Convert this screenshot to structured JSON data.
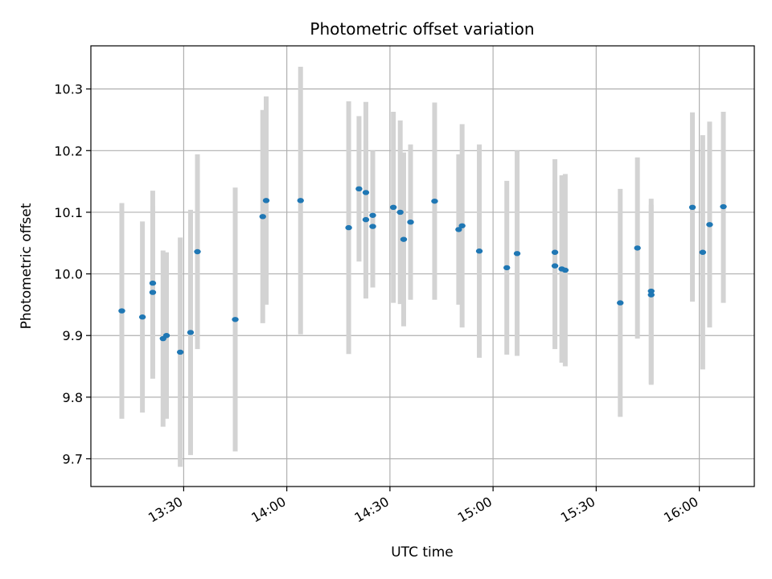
{
  "chart_data": {
    "type": "scatter",
    "title": "Photometric offset variation",
    "xlabel": "UTC time",
    "ylabel": "Photometric offset",
    "xlim": [
      "13:03",
      "16:16"
    ],
    "ylim": [
      9.655,
      10.37
    ],
    "grid": true,
    "colors": {
      "point": "#1f77b4",
      "errorbar": "#d3d3d3"
    },
    "x_ticks": [
      "13:30",
      "14:00",
      "14:30",
      "15:00",
      "15:30",
      "16:00"
    ],
    "y_ticks": [
      "9.7",
      "9.8",
      "9.9",
      "10.0",
      "10.1",
      "10.2",
      "10.3"
    ],
    "series": [
      {
        "points": [
          {
            "t": "13:12",
            "y": 9.94,
            "lo": 9.765,
            "hi": 10.115
          },
          {
            "t": "13:18",
            "y": 9.93,
            "lo": 9.775,
            "hi": 10.085
          },
          {
            "t": "13:21",
            "y": 9.985,
            "lo": 9.835,
            "hi": 10.135
          },
          {
            "t": "13:21",
            "y": 9.97,
            "lo": 9.83,
            "hi": 10.11
          },
          {
            "t": "13:24",
            "y": 9.895,
            "lo": 9.752,
            "hi": 10.038
          },
          {
            "t": "13:25",
            "y": 9.9,
            "lo": 9.765,
            "hi": 10.035
          },
          {
            "t": "13:29",
            "y": 9.873,
            "lo": 9.687,
            "hi": 10.059
          },
          {
            "t": "13:32",
            "y": 9.905,
            "lo": 9.706,
            "hi": 10.104
          },
          {
            "t": "13:34",
            "y": 10.036,
            "lo": 9.878,
            "hi": 10.194
          },
          {
            "t": "13:45",
            "y": 9.926,
            "lo": 9.712,
            "hi": 10.14
          },
          {
            "t": "13:53",
            "y": 10.093,
            "lo": 9.92,
            "hi": 10.266
          },
          {
            "t": "13:54",
            "y": 10.119,
            "lo": 9.95,
            "hi": 10.288
          },
          {
            "t": "14:04",
            "y": 10.119,
            "lo": 9.902,
            "hi": 10.336
          },
          {
            "t": "14:18",
            "y": 10.075,
            "lo": 9.87,
            "hi": 10.28
          },
          {
            "t": "14:21",
            "y": 10.138,
            "lo": 10.02,
            "hi": 10.256
          },
          {
            "t": "14:23",
            "y": 10.088,
            "lo": 9.96,
            "hi": 10.216
          },
          {
            "t": "14:23",
            "y": 10.132,
            "lo": 9.985,
            "hi": 10.279
          },
          {
            "t": "14:25",
            "y": 10.095,
            "lo": 9.99,
            "hi": 10.2
          },
          {
            "t": "14:25",
            "y": 10.077,
            "lo": 9.978,
            "hi": 10.176
          },
          {
            "t": "14:31",
            "y": 10.108,
            "lo": 9.953,
            "hi": 10.263
          },
          {
            "t": "14:33",
            "y": 10.1,
            "lo": 9.951,
            "hi": 10.249
          },
          {
            "t": "14:34",
            "y": 10.056,
            "lo": 9.915,
            "hi": 10.197
          },
          {
            "t": "14:36",
            "y": 10.084,
            "lo": 9.958,
            "hi": 10.21
          },
          {
            "t": "14:43",
            "y": 10.118,
            "lo": 9.958,
            "hi": 10.278
          },
          {
            "t": "14:50",
            "y": 10.072,
            "lo": 9.95,
            "hi": 10.194
          },
          {
            "t": "14:51",
            "y": 10.078,
            "lo": 9.913,
            "hi": 10.243
          },
          {
            "t": "14:56",
            "y": 10.037,
            "lo": 9.864,
            "hi": 10.21
          },
          {
            "t": "15:04",
            "y": 10.01,
            "lo": 9.869,
            "hi": 10.151
          },
          {
            "t": "15:07",
            "y": 10.033,
            "lo": 9.867,
            "hi": 10.2
          },
          {
            "t": "15:18",
            "y": 10.035,
            "lo": 9.883,
            "hi": 10.186
          },
          {
            "t": "15:18",
            "y": 10.013,
            "lo": 9.878,
            "hi": 10.148
          },
          {
            "t": "15:20",
            "y": 10.008,
            "lo": 9.856,
            "hi": 10.16
          },
          {
            "t": "15:21",
            "y": 10.006,
            "lo": 9.85,
            "hi": 10.162
          },
          {
            "t": "15:37",
            "y": 9.953,
            "lo": 9.768,
            "hi": 10.138
          },
          {
            "t": "15:42",
            "y": 10.042,
            "lo": 9.895,
            "hi": 10.189
          },
          {
            "t": "15:46",
            "y": 9.972,
            "lo": 9.822,
            "hi": 10.122
          },
          {
            "t": "15:46",
            "y": 9.966,
            "lo": 9.82,
            "hi": 10.112
          },
          {
            "t": "15:58",
            "y": 10.108,
            "lo": 9.955,
            "hi": 10.262
          },
          {
            "t": "16:01",
            "y": 10.035,
            "lo": 9.845,
            "hi": 10.225
          },
          {
            "t": "16:03",
            "y": 10.08,
            "lo": 9.913,
            "hi": 10.247
          },
          {
            "t": "16:07",
            "y": 10.109,
            "lo": 9.953,
            "hi": 10.263
          }
        ]
      }
    ]
  }
}
